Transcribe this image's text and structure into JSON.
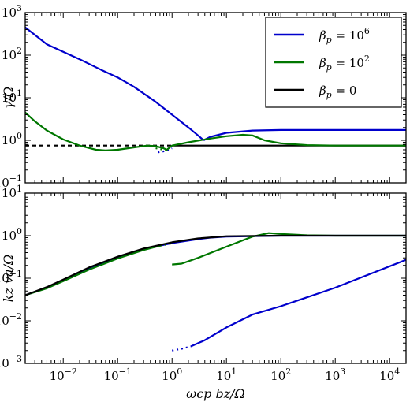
{
  "chart_data": [
    {
      "type": "line",
      "panel": "top",
      "ylabel": "γ/Ω",
      "xscale": "log",
      "yscale": "log",
      "xlim": [
        0.002,
        20000
      ],
      "ylim": [
        0.1,
        1000
      ],
      "y_tick_labels": [
        {
          "value": 0.1,
          "base": "10",
          "exp": "−1"
        },
        {
          "value": 1,
          "base": "10",
          "exp": "0"
        },
        {
          "value": 10,
          "base": "10",
          "exp": "1"
        },
        {
          "value": 100,
          "base": "10",
          "exp": "2"
        },
        {
          "value": 1000,
          "base": "10",
          "exp": "3"
        }
      ],
      "legend": {
        "placement": "top-right",
        "entries": [
          {
            "series": "beta_p_1e6",
            "label": "βp = 10⁶",
            "sym": "β",
            "sub": "p",
            "eq": " = 10",
            "sup": "6",
            "color": "#0000cc"
          },
          {
            "series": "beta_p_1e2",
            "label": "βp = 10²",
            "sym": "β",
            "sub": "p",
            "eq": " = 10",
            "sup": "2",
            "color": "#007700"
          },
          {
            "series": "beta_p_0",
            "label": "βp = 0",
            "sym": "β",
            "sub": "p",
            "eq": " = 0",
            "sup": "",
            "color": "#000000"
          }
        ]
      },
      "series": [
        {
          "key": "beta_p_0",
          "color": "#000000",
          "segments": [
            {
              "style": "dashed",
              "x": [
                0.002,
                0.01,
                0.1,
                0.6,
                1.0
              ],
              "y": [
                0.75,
                0.75,
                0.75,
                0.75,
                0.75
              ]
            },
            {
              "style": "solid",
              "x": [
                1.0,
                4,
                100,
                1000,
                20000
              ],
              "y": [
                0.75,
                0.75,
                0.75,
                0.75,
                0.75
              ]
            }
          ]
        },
        {
          "key": "beta_p_1e6",
          "color": "#0000cc",
          "segments": [
            {
              "style": "solid",
              "x": [
                0.002,
                0.003,
                0.005,
                0.01,
                0.02,
                0.05,
                0.1,
                0.2,
                0.5,
                1,
                2,
                3,
                3.8
              ],
              "y": [
                450,
                300,
                180,
                120,
                80,
                45,
                30,
                18,
                8,
                4,
                2,
                1.3,
                1.0
              ]
            },
            {
              "style": "solid",
              "x": [
                3.8,
                5,
                10,
                30,
                100,
                300,
                1000,
                20000
              ],
              "y": [
                1.0,
                1.2,
                1.5,
                1.7,
                1.75,
                1.75,
                1.75,
                1.75
              ]
            },
            {
              "style": "dotted",
              "x": [
                0.55,
                0.7,
                0.85,
                1.0
              ],
              "y": [
                0.52,
                0.55,
                0.6,
                0.65
              ]
            }
          ]
        },
        {
          "key": "beta_p_1e2",
          "color": "#007700",
          "segments": [
            {
              "style": "solid",
              "x": [
                0.002,
                0.003,
                0.005,
                0.01,
                0.02,
                0.04,
                0.06,
                0.1,
                0.2,
                0.35,
                0.5,
                0.7,
                0.8,
                1.0,
                2,
                5,
                10,
                20,
                30,
                50,
                100,
                300,
                1000,
                20000
              ],
              "y": [
                4.5,
                2.8,
                1.7,
                1.05,
                0.75,
                0.6,
                0.58,
                0.6,
                0.68,
                0.75,
                0.73,
                0.65,
                0.6,
                0.75,
                0.9,
                1.1,
                1.25,
                1.35,
                1.3,
                1.0,
                0.85,
                0.77,
                0.75,
                0.75
              ]
            },
            {
              "style": "dotted",
              "x": [
                0.5,
                0.7,
                0.85
              ],
              "y": [
                0.65,
                0.6,
                0.55
              ]
            }
          ]
        }
      ]
    },
    {
      "type": "line",
      "panel": "bottom",
      "xlabel": "ωcp bz/Ω",
      "ylabel": "kz va/Ω",
      "xscale": "log",
      "yscale": "log",
      "xlim": [
        0.002,
        20000
      ],
      "ylim": [
        0.001,
        10
      ],
      "x_tick_labels": [
        {
          "value": 0.01,
          "base": "10",
          "exp": "−2"
        },
        {
          "value": 0.1,
          "base": "10",
          "exp": "−1"
        },
        {
          "value": 1,
          "base": "10",
          "exp": "0"
        },
        {
          "value": 10,
          "base": "10",
          "exp": "1"
        },
        {
          "value": 100,
          "base": "10",
          "exp": "2"
        },
        {
          "value": 1000,
          "base": "10",
          "exp": "3"
        },
        {
          "value": 10000,
          "base": "10",
          "exp": "4"
        }
      ],
      "y_tick_labels": [
        {
          "value": 0.001,
          "base": "10",
          "exp": "−3"
        },
        {
          "value": 0.01,
          "base": "10",
          "exp": "−2"
        },
        {
          "value": 0.1,
          "base": "10",
          "exp": "−1"
        },
        {
          "value": 1,
          "base": "10",
          "exp": "0"
        },
        {
          "value": 10,
          "base": "10",
          "exp": "1"
        }
      ],
      "series": [
        {
          "key": "beta_p_1e6",
          "color": "#0000cc",
          "segments": [
            {
              "style": "dotted",
              "x": [
                1.0,
                1.5,
                2.2
              ],
              "y": [
                0.002,
                0.0022,
                0.0025
              ]
            },
            {
              "style": "solid",
              "x": [
                2.2,
                4,
                10,
                30,
                100,
                1000,
                20000
              ],
              "y": [
                0.0025,
                0.0035,
                0.007,
                0.014,
                0.022,
                0.06,
                0.27
              ]
            },
            {
              "style": "solid",
              "x": [
                0.002,
                0.005,
                0.01,
                0.03,
                0.1,
                0.3,
                1,
                3,
                5,
                10,
                100,
                20000
              ],
              "y": [
                0.04,
                0.06,
                0.09,
                0.17,
                0.3,
                0.48,
                0.67,
                0.83,
                0.9,
                0.95,
                1,
                1
              ]
            }
          ]
        },
        {
          "key": "beta_p_1e2",
          "color": "#007700",
          "segments": [
            {
              "style": "solid",
              "x": [
                0.002,
                0.005,
                0.01,
                0.03,
                0.1,
                0.3,
                0.6
              ],
              "y": [
                0.04,
                0.058,
                0.085,
                0.16,
                0.29,
                0.46,
                0.58
              ]
            },
            {
              "style": "dotted",
              "x": [
                0.6,
                0.8,
                1.0
              ],
              "y": [
                0.58,
                0.62,
                0.66
              ]
            },
            {
              "style": "solid",
              "x": [
                1.0,
                1.5,
                3,
                10,
                30,
                60,
                100,
                300,
                1000,
                20000
              ],
              "y": [
                0.21,
                0.22,
                0.3,
                0.55,
                0.95,
                1.15,
                1.1,
                1.02,
                1.0,
                1.0
              ]
            }
          ]
        },
        {
          "key": "beta_p_0",
          "color": "#000000",
          "segments": [
            {
              "style": "solid",
              "x": [
                0.002,
                0.005,
                0.01,
                0.03,
                0.1,
                0.3,
                1,
                3,
                10,
                100,
                20000
              ],
              "y": [
                0.04,
                0.062,
                0.093,
                0.18,
                0.32,
                0.5,
                0.7,
                0.86,
                0.97,
                1,
                1
              ]
            }
          ]
        }
      ]
    }
  ]
}
